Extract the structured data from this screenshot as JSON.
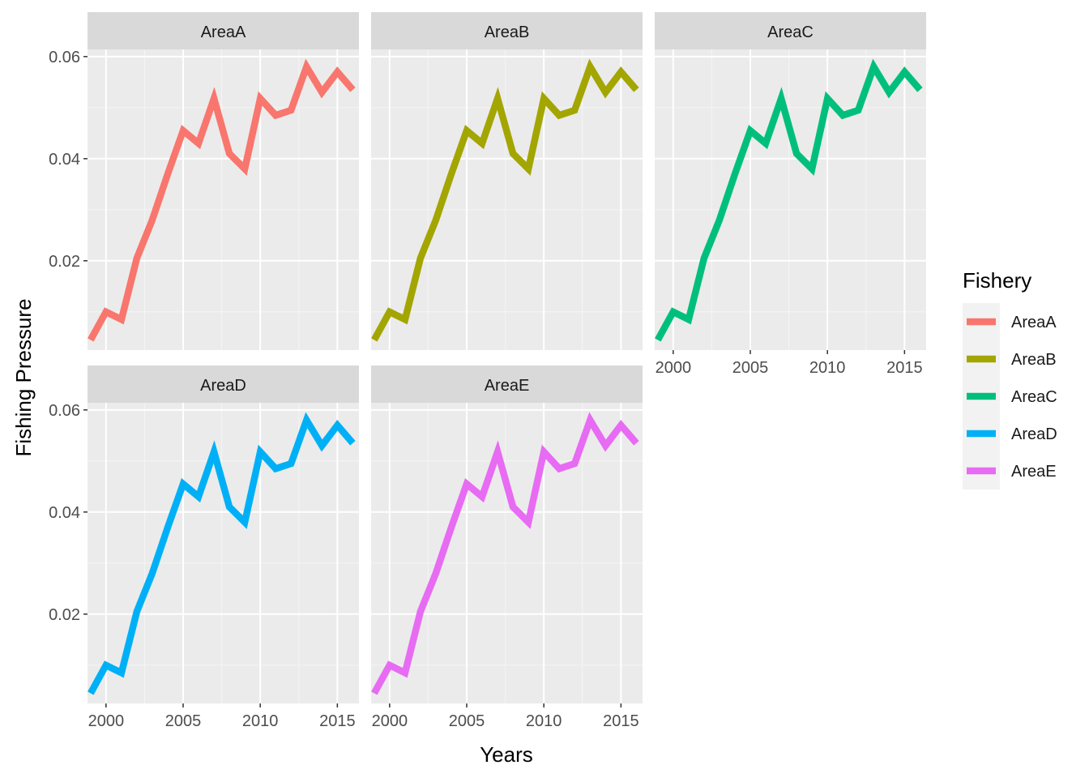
{
  "chart_data": {
    "type": "line",
    "facet_by": "Fishery",
    "xlabel": "Years",
    "ylabel": "Fishing Pressure",
    "xlim": [
      1998.8,
      2016.4
    ],
    "ylim": [
      0.0025,
      0.0614
    ],
    "x_ticks": [
      2000,
      2005,
      2010,
      2015
    ],
    "y_ticks": [
      0.02,
      0.04,
      0.06
    ],
    "x_tick_labels": [
      "2000",
      "2005",
      "2010",
      "2015"
    ],
    "y_tick_labels": [
      "0.02",
      "0.04",
      "0.06"
    ],
    "grid": true,
    "legend": {
      "title": "Fishery",
      "position": "right",
      "entries": [
        "AreaA",
        "AreaB",
        "AreaC",
        "AreaD",
        "AreaE"
      ]
    },
    "x": [
      1999,
      2000,
      2001,
      2002,
      2003,
      2004,
      2005,
      2006,
      2007,
      2008,
      2009,
      2010,
      2011,
      2012,
      2013,
      2014,
      2015,
      2016
    ],
    "series": [
      {
        "name": "AreaA",
        "color": "#F8766D",
        "values": [
          0.0045,
          0.01,
          0.0085,
          0.0205,
          0.028,
          0.037,
          0.0455,
          0.043,
          0.0518,
          0.041,
          0.038,
          0.0518,
          0.0485,
          0.0495,
          0.058,
          0.053,
          0.057,
          0.0535
        ]
      },
      {
        "name": "AreaB",
        "color": "#A3A500",
        "values": [
          0.0045,
          0.01,
          0.0085,
          0.0205,
          0.028,
          0.037,
          0.0455,
          0.043,
          0.0518,
          0.041,
          0.038,
          0.0518,
          0.0485,
          0.0495,
          0.058,
          0.053,
          0.057,
          0.0535
        ]
      },
      {
        "name": "AreaC",
        "color": "#00BF7D",
        "values": [
          0.0045,
          0.01,
          0.0085,
          0.0205,
          0.028,
          0.037,
          0.0455,
          0.043,
          0.0518,
          0.041,
          0.038,
          0.0518,
          0.0485,
          0.0495,
          0.058,
          0.053,
          0.057,
          0.0535
        ]
      },
      {
        "name": "AreaD",
        "color": "#00B0F6",
        "values": [
          0.0045,
          0.01,
          0.0085,
          0.0205,
          0.028,
          0.037,
          0.0455,
          0.043,
          0.0518,
          0.041,
          0.038,
          0.0518,
          0.0485,
          0.0495,
          0.058,
          0.053,
          0.057,
          0.0535
        ]
      },
      {
        "name": "AreaE",
        "color": "#E76BF3",
        "values": [
          0.0045,
          0.01,
          0.0085,
          0.0205,
          0.028,
          0.037,
          0.0455,
          0.043,
          0.0518,
          0.041,
          0.038,
          0.0518,
          0.0485,
          0.0495,
          0.058,
          0.053,
          0.057,
          0.0535
        ]
      }
    ]
  },
  "colors": {
    "panel_background": "#EBEBEB",
    "strip_background": "#D9D9D9",
    "grid_major": "#FFFFFF",
    "grid_minor": "#F5F5F5"
  }
}
